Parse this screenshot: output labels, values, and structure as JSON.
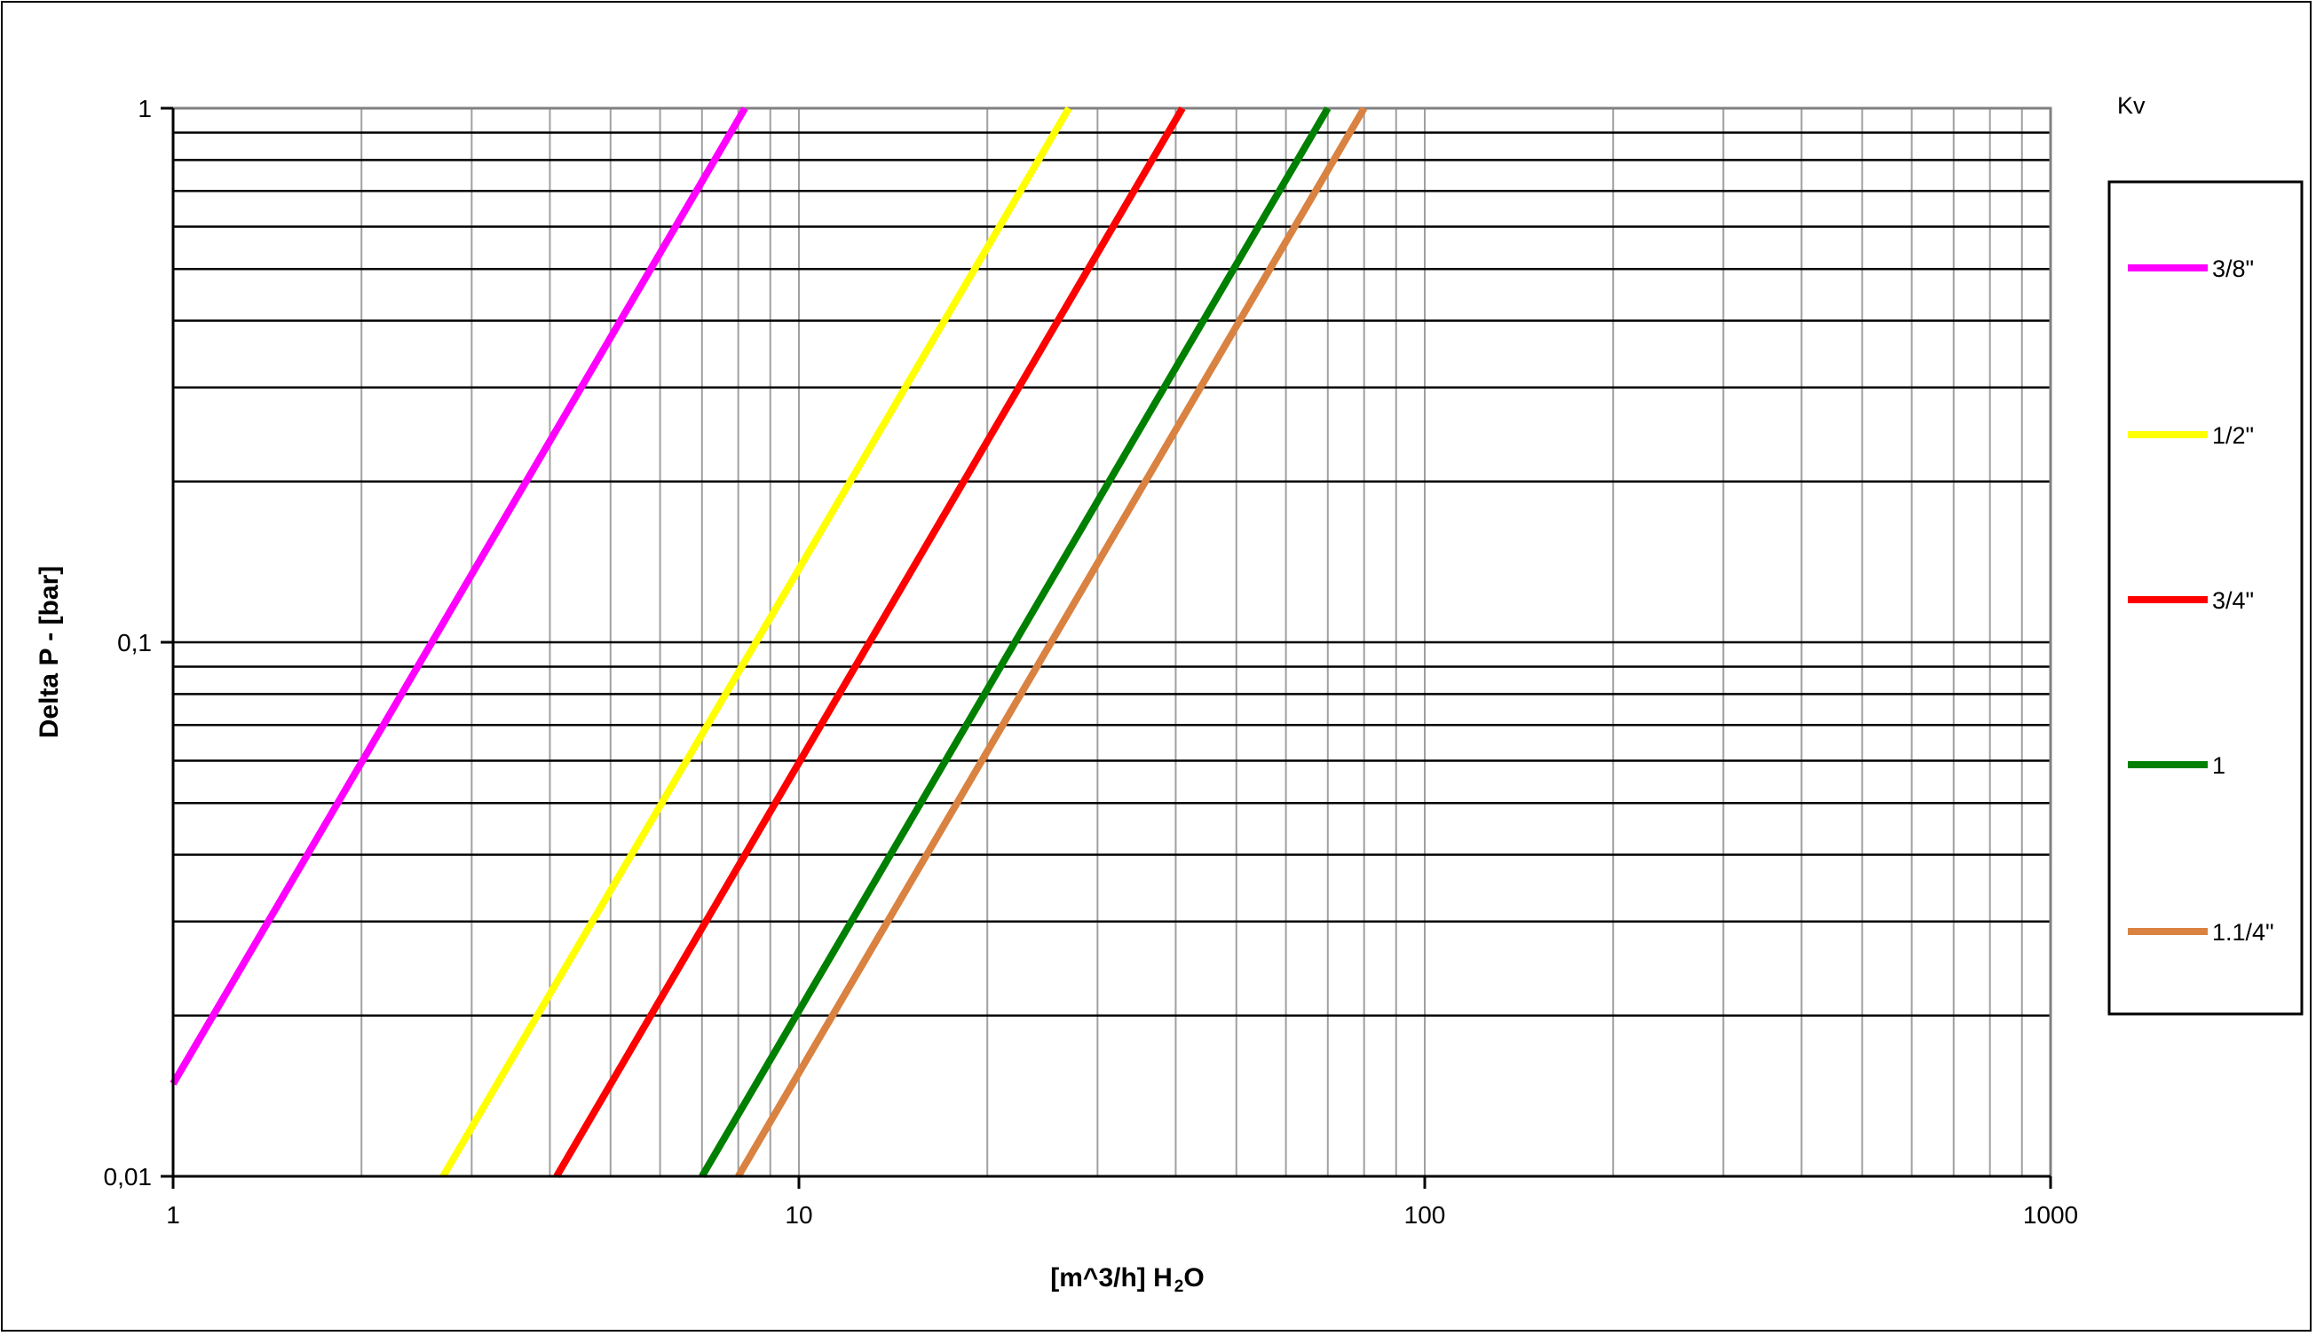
{
  "chart_data": {
    "type": "line",
    "title": "",
    "xlabel": "[m^3/h] H",
    "xlabel_sub": "2",
    "xlabel_tail": "O",
    "ylabel": "Delta P - [bar]",
    "x_scale": "log",
    "y_scale": "log",
    "xlim": [
      1,
      1000
    ],
    "ylim": [
      0.01,
      1
    ],
    "x_ticks": [
      1,
      10,
      100,
      1000
    ],
    "x_tick_labels": [
      "1",
      "10",
      "100",
      "1000"
    ],
    "y_ticks": [
      0.01,
      0.1,
      1
    ],
    "y_tick_labels": [
      "0,01",
      "0,1",
      "1"
    ],
    "grid": true,
    "legend_title": "Kv",
    "legend_position": "right",
    "series": [
      {
        "name": "3/8\"",
        "color": "#ff00ff",
        "x": [
          1,
          8.2
        ],
        "y": [
          0.0149,
          1
        ]
      },
      {
        "name": "1/2\"",
        "color": "#ffff00",
        "x": [
          2.7,
          27
        ],
        "y": [
          0.01,
          1
        ]
      },
      {
        "name": "3/4\"",
        "color": "#ff0000",
        "x": [
          4.1,
          41
        ],
        "y": [
          0.01,
          1
        ]
      },
      {
        "name": "1",
        "color": "#008000",
        "x": [
          7,
          70
        ],
        "y": [
          0.01,
          1
        ]
      },
      {
        "name": "1.1/4\"",
        "color": "#d98241",
        "x": [
          8,
          80
        ],
        "y": [
          0.01,
          1
        ]
      }
    ]
  }
}
